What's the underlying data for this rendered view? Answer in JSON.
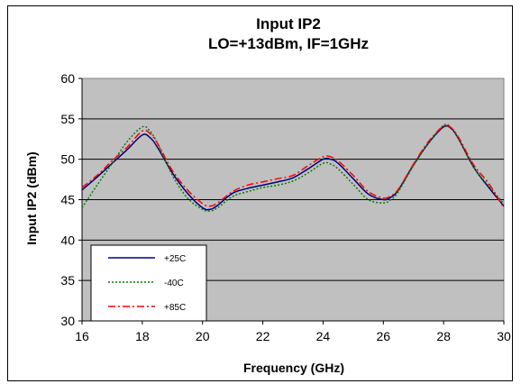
{
  "chart_data": {
    "type": "line",
    "title": [
      "Input IP2",
      "LO=+13dBm, IF=1GHz"
    ],
    "xlabel": "Frequency (GHz)",
    "ylabel": "Input IP2 (dBm)",
    "xlim": [
      16,
      30
    ],
    "ylim": [
      30,
      60
    ],
    "xticks": [
      "16",
      "18",
      "20",
      "22",
      "24",
      "26",
      "28",
      "30"
    ],
    "yticks": [
      "30",
      "35",
      "40",
      "45",
      "50",
      "55",
      "60"
    ],
    "grid": "horizontal",
    "legend_position": "bottom-left",
    "plot_background": "#c0c0c0",
    "series": [
      {
        "name": "+25C",
        "color": "#000080",
        "dash": "solid",
        "points": [
          [
            16,
            46.2
          ],
          [
            16.5,
            47.8
          ],
          [
            17,
            49.5
          ],
          [
            17.5,
            51.2
          ],
          [
            18,
            53.0
          ],
          [
            18.25,
            52.7
          ],
          [
            18.5,
            51.5
          ],
          [
            19,
            48.3
          ],
          [
            19.5,
            45.8
          ],
          [
            20,
            44.0
          ],
          [
            20.25,
            43.8
          ],
          [
            20.5,
            44.3
          ],
          [
            21,
            45.8
          ],
          [
            21.5,
            46.4
          ],
          [
            22,
            46.8
          ],
          [
            22.5,
            47.2
          ],
          [
            23,
            47.7
          ],
          [
            23.5,
            48.8
          ],
          [
            24,
            50.0
          ],
          [
            24.25,
            50.0
          ],
          [
            24.5,
            49.5
          ],
          [
            25,
            47.6
          ],
          [
            25.5,
            45.7
          ],
          [
            26,
            45.0
          ],
          [
            26.25,
            45.3
          ],
          [
            26.5,
            46.2
          ],
          [
            27,
            49.3
          ],
          [
            27.5,
            52.0
          ],
          [
            28,
            54.0
          ],
          [
            28.25,
            53.8
          ],
          [
            28.5,
            52.5
          ],
          [
            29,
            49.0
          ],
          [
            29.5,
            46.5
          ],
          [
            30,
            44.2
          ]
        ]
      },
      {
        "name": "-40C",
        "color": "#008000",
        "dash": "2,2",
        "points": [
          [
            16,
            44.0
          ],
          [
            16.5,
            46.8
          ],
          [
            17,
            49.5
          ],
          [
            17.5,
            52.2
          ],
          [
            18,
            54.0
          ],
          [
            18.25,
            53.5
          ],
          [
            18.5,
            52.0
          ],
          [
            19,
            48.0
          ],
          [
            19.5,
            45.2
          ],
          [
            20,
            43.8
          ],
          [
            20.25,
            43.6
          ],
          [
            20.5,
            44.0
          ],
          [
            21,
            45.4
          ],
          [
            21.5,
            46.0
          ],
          [
            22,
            46.5
          ],
          [
            22.5,
            46.8
          ],
          [
            23,
            47.3
          ],
          [
            23.5,
            48.3
          ],
          [
            24,
            49.5
          ],
          [
            24.25,
            49.4
          ],
          [
            24.5,
            48.8
          ],
          [
            25,
            46.9
          ],
          [
            25.5,
            45.0
          ],
          [
            26,
            44.6
          ],
          [
            26.25,
            45.0
          ],
          [
            26.5,
            46.0
          ],
          [
            27,
            49.2
          ],
          [
            27.5,
            52.0
          ],
          [
            28,
            54.2
          ],
          [
            28.25,
            53.9
          ],
          [
            28.5,
            52.5
          ],
          [
            29,
            49.0
          ],
          [
            29.5,
            46.7
          ],
          [
            30,
            44.5
          ]
        ]
      },
      {
        "name": "+85C",
        "color": "#ff0000",
        "dash": "8,3,2,3",
        "points": [
          [
            16,
            46.5
          ],
          [
            16.5,
            48.0
          ],
          [
            17,
            49.8
          ],
          [
            17.5,
            51.5
          ],
          [
            18,
            53.5
          ],
          [
            18.25,
            53.2
          ],
          [
            18.5,
            52.0
          ],
          [
            19,
            48.6
          ],
          [
            19.5,
            46.2
          ],
          [
            20,
            44.5
          ],
          [
            20.25,
            44.2
          ],
          [
            20.5,
            44.6
          ],
          [
            21,
            46.0
          ],
          [
            21.5,
            46.8
          ],
          [
            22,
            47.2
          ],
          [
            22.5,
            47.6
          ],
          [
            23,
            48.0
          ],
          [
            23.5,
            49.2
          ],
          [
            24,
            50.3
          ],
          [
            24.25,
            50.3
          ],
          [
            24.5,
            49.8
          ],
          [
            25,
            48.0
          ],
          [
            25.5,
            46.0
          ],
          [
            26,
            45.2
          ],
          [
            26.25,
            45.5
          ],
          [
            26.5,
            46.3
          ],
          [
            27,
            49.4
          ],
          [
            27.5,
            52.2
          ],
          [
            28,
            54.1
          ],
          [
            28.25,
            53.9
          ],
          [
            28.5,
            52.7
          ],
          [
            29,
            49.3
          ],
          [
            29.5,
            47.0
          ],
          [
            30,
            44.0
          ]
        ]
      }
    ]
  }
}
